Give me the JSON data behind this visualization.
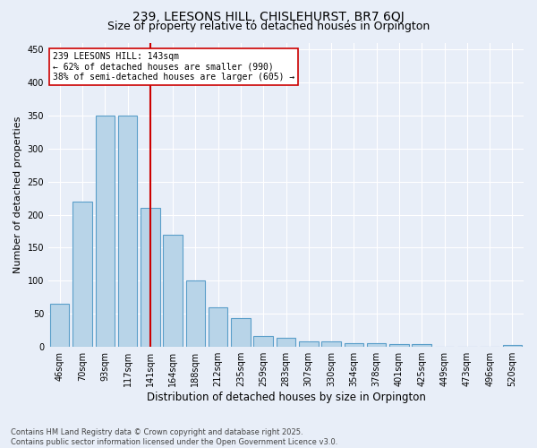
{
  "title": "239, LEESONS HILL, CHISLEHURST, BR7 6QJ",
  "subtitle": "Size of property relative to detached houses in Orpington",
  "xlabel": "Distribution of detached houses by size in Orpington",
  "ylabel": "Number of detached properties",
  "categories": [
    "46sqm",
    "70sqm",
    "93sqm",
    "117sqm",
    "141sqm",
    "164sqm",
    "188sqm",
    "212sqm",
    "235sqm",
    "259sqm",
    "283sqm",
    "307sqm",
    "330sqm",
    "354sqm",
    "378sqm",
    "401sqm",
    "425sqm",
    "449sqm",
    "473sqm",
    "496sqm",
    "520sqm"
  ],
  "values": [
    65,
    220,
    350,
    350,
    210,
    170,
    100,
    60,
    43,
    17,
    14,
    8,
    8,
    6,
    6,
    4,
    4,
    0,
    0,
    0,
    3
  ],
  "bar_color": "#b8d4e8",
  "bar_edge_color": "#5a9ec9",
  "background_color": "#e8eef8",
  "grid_color": "#ffffff",
  "vline_index": 4,
  "vline_color": "#cc0000",
  "annotation_text": "239 LEESONS HILL: 143sqm\n← 62% of detached houses are smaller (990)\n38% of semi-detached houses are larger (605) →",
  "annotation_box_color": "#ffffff",
  "annotation_box_edge": "#cc0000",
  "ylim": [
    0,
    460
  ],
  "yticks": [
    0,
    50,
    100,
    150,
    200,
    250,
    300,
    350,
    400,
    450
  ],
  "title_fontsize": 10,
  "subtitle_fontsize": 9,
  "xlabel_fontsize": 8.5,
  "ylabel_fontsize": 8,
  "tick_fontsize": 7,
  "annotation_fontsize": 7,
  "footer_text": "Contains HM Land Registry data © Crown copyright and database right 2025.\nContains public sector information licensed under the Open Government Licence v3.0."
}
